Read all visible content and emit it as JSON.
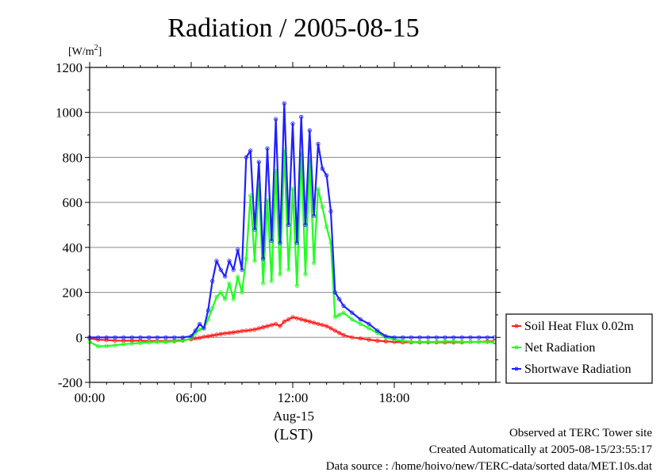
{
  "chart_data": {
    "type": "line",
    "title": "Radiation / 2005-08-15",
    "ylabel_unit": "[W/m",
    "ylabel_unit_sup": "2",
    "ylabel_unit_close": "]",
    "xlabel": "(LST)",
    "x_date_label": "Aug-15",
    "ylim": [
      -200,
      1200
    ],
    "xlim_hours": [
      0,
      24
    ],
    "y_ticks": [
      -200,
      0,
      200,
      400,
      600,
      800,
      1000,
      1200
    ],
    "y_tick_labels": [
      "-200",
      "0",
      "200",
      "400",
      "600",
      "800",
      "1000",
      "1200"
    ],
    "x_ticks_hours": [
      0,
      6,
      12,
      18
    ],
    "x_tick_labels": [
      "00:00",
      "06:00",
      "12:00",
      "18:00"
    ],
    "grid": "horizontal",
    "legend_position": "right",
    "x_hours": [
      0,
      0.5,
      1,
      1.5,
      2,
      2.5,
      3,
      3.5,
      4,
      4.5,
      5,
      5.5,
      6,
      6.25,
      6.5,
      6.75,
      7,
      7.25,
      7.5,
      7.75,
      8,
      8.25,
      8.5,
      8.75,
      9,
      9.25,
      9.5,
      9.75,
      10,
      10.25,
      10.5,
      10.75,
      11,
      11.25,
      11.5,
      11.75,
      12,
      12.25,
      12.5,
      12.75,
      13,
      13.25,
      13.5,
      13.75,
      14,
      14.25,
      14.5,
      14.75,
      15,
      15.5,
      16,
      16.5,
      17,
      17.5,
      18,
      18.5,
      19,
      19.5,
      20,
      20.5,
      21,
      21.5,
      22,
      22.5,
      23,
      23.5,
      23.9
    ],
    "series": [
      {
        "name": "Soil Heat Flux 0.02m",
        "color": "#ff2020",
        "values": [
          -5,
          -10,
          -12,
          -14,
          -15,
          -15,
          -15,
          -16,
          -16,
          -16,
          -15,
          -12,
          -8,
          -5,
          -2,
          2,
          5,
          8,
          12,
          15,
          18,
          20,
          22,
          25,
          28,
          30,
          32,
          35,
          40,
          45,
          50,
          55,
          60,
          50,
          70,
          80,
          90,
          85,
          80,
          75,
          70,
          65,
          60,
          55,
          50,
          40,
          30,
          20,
          10,
          0,
          -5,
          -10,
          -15,
          -18,
          -20,
          -22,
          -22,
          -22,
          -22,
          -22,
          -22,
          -22,
          -22,
          -20,
          -20,
          -18,
          -18
        ]
      },
      {
        "name": "Net Radiation",
        "color": "#20ff20",
        "values": [
          -20,
          -40,
          -38,
          -35,
          -30,
          -28,
          -25,
          -22,
          -20,
          -20,
          -18,
          -15,
          -5,
          20,
          35,
          40,
          80,
          130,
          180,
          200,
          170,
          240,
          170,
          270,
          200,
          350,
          630,
          340,
          680,
          240,
          610,
          250,
          740,
          280,
          830,
          300,
          660,
          230,
          820,
          280,
          790,
          330,
          660,
          580,
          490,
          420,
          90,
          100,
          110,
          80,
          60,
          40,
          20,
          0,
          -10,
          -15,
          -20,
          -20,
          -20,
          -20,
          -18,
          -18,
          -20,
          -20,
          -20,
          -20,
          -22
        ]
      },
      {
        "name": "Shortwave Radiation",
        "color": "#2020ff",
        "values": [
          0,
          0,
          0,
          0,
          0,
          0,
          0,
          0,
          0,
          0,
          0,
          0,
          5,
          30,
          60,
          40,
          120,
          250,
          340,
          300,
          270,
          340,
          300,
          390,
          300,
          800,
          830,
          480,
          780,
          350,
          840,
          430,
          970,
          420,
          1040,
          500,
          950,
          420,
          980,
          500,
          920,
          540,
          860,
          750,
          720,
          560,
          200,
          170,
          140,
          110,
          80,
          60,
          30,
          5,
          0,
          0,
          0,
          0,
          0,
          0,
          0,
          0,
          0,
          0,
          0,
          0,
          0
        ]
      }
    ]
  },
  "footer": {
    "line1": "Observed at TERC Tower site",
    "line2": "Created Automatically at 2005-08-15/23:55:17",
    "line3": "Data source : /home/hoivo/new/TERC-data/sorted  data/MET.10s.dat"
  }
}
